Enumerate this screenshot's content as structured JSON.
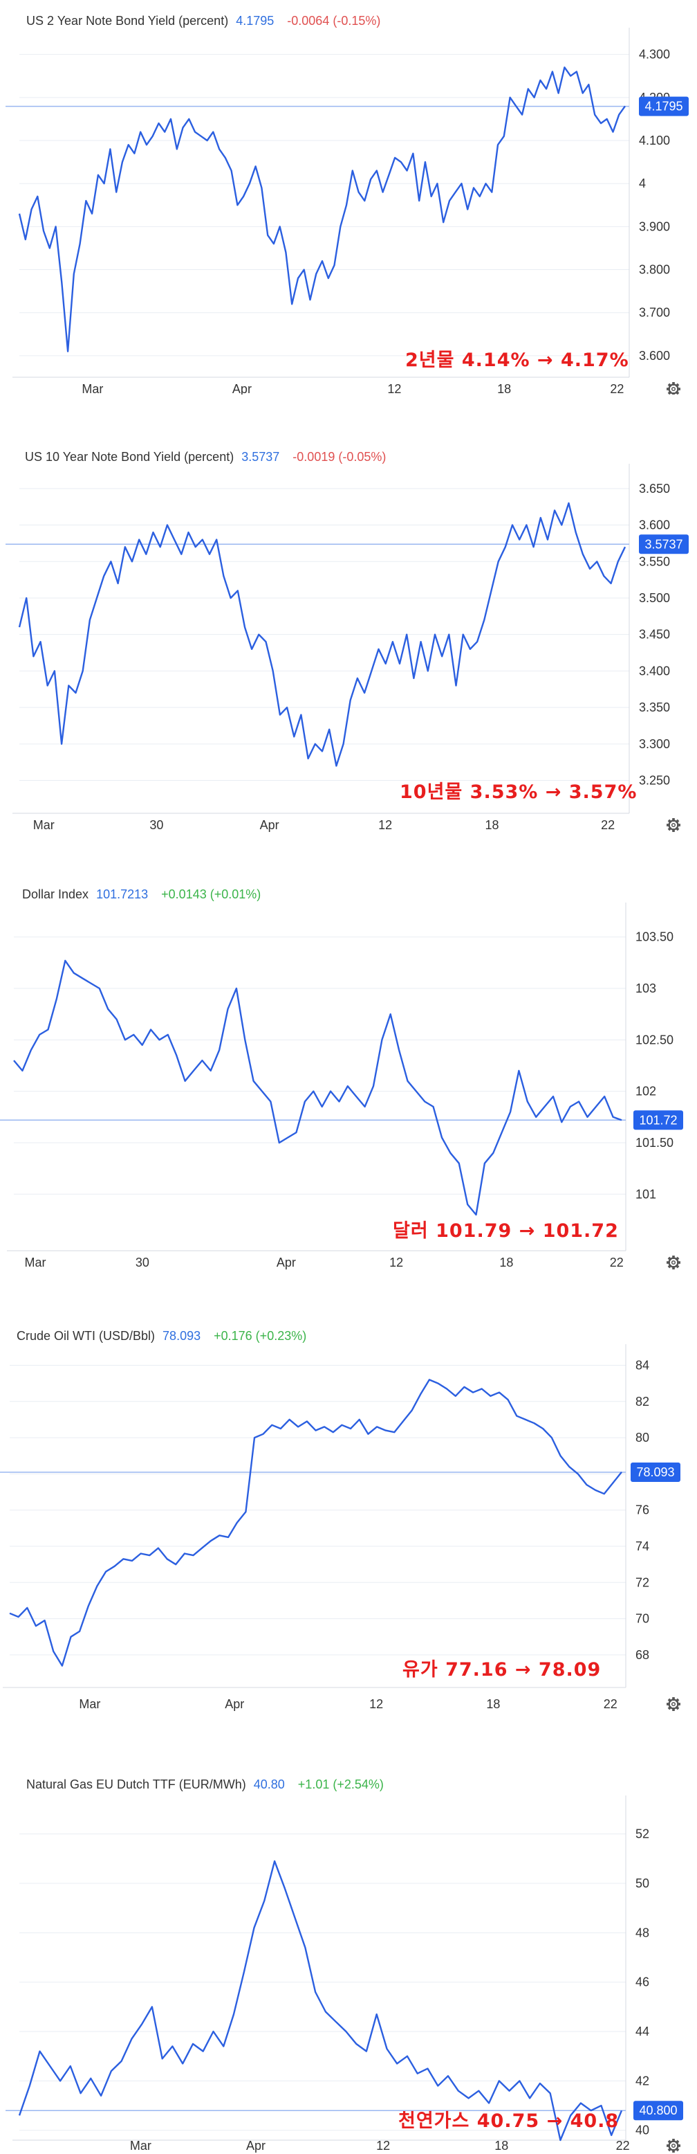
{
  "chart_data": [
    {
      "type": "line",
      "title": "US 2 Year Note Bond Yield (percent)",
      "last": "4.1795",
      "change": "-0.0064 (-0.15%)",
      "change_sign": "neg",
      "last_label": "4.1795",
      "last_value": 4.1795,
      "ylim": [
        3.55,
        4.33
      ],
      "y_ticks": [
        {
          "v": 4.3,
          "t": "4.300"
        },
        {
          "v": 4.2,
          "t": "4.200"
        },
        {
          "v": 4.1,
          "t": "4.100"
        },
        {
          "v": 4.0,
          "t": "4"
        },
        {
          "v": 3.9,
          "t": "3.900"
        },
        {
          "v": 3.8,
          "t": "3.800"
        },
        {
          "v": 3.7,
          "t": "3.700"
        },
        {
          "v": 3.6,
          "t": "3.600"
        }
      ],
      "x_ticks": [
        {
          "label": "Mar",
          "pos": 0.12
        },
        {
          "label": "Apr",
          "pos": 0.365
        },
        {
          "label": "12",
          "pos": 0.615
        },
        {
          "label": "18",
          "pos": 0.795
        },
        {
          "label": "22",
          "pos": 0.98
        }
      ],
      "annotation": "2년물 4.14% → 4.17%",
      "series": [
        {
          "values": [
            3.93,
            3.87,
            3.94,
            3.97,
            3.89,
            3.85,
            3.9,
            3.77,
            3.61,
            3.79,
            3.86,
            3.96,
            3.93,
            4.02,
            4.0,
            4.08,
            3.98,
            4.05,
            4.09,
            4.07,
            4.12,
            4.09,
            4.11,
            4.14,
            4.12,
            4.15,
            4.08,
            4.13,
            4.15,
            4.12,
            4.11,
            4.1,
            4.12,
            4.08,
            4.06,
            4.03,
            3.95,
            3.97,
            4.0,
            4.04,
            3.99,
            3.88,
            3.86,
            3.9,
            3.84,
            3.72,
            3.78,
            3.8,
            3.73,
            3.79,
            3.82,
            3.78,
            3.81,
            3.9,
            3.95,
            4.03,
            3.98,
            3.96,
            4.01,
            4.03,
            3.98,
            4.02,
            4.06,
            4.05,
            4.03,
            4.07,
            3.96,
            4.05,
            3.97,
            4.0,
            3.91,
            3.96,
            3.98,
            4.0,
            3.94,
            3.99,
            3.97,
            4.0,
            3.98,
            4.09,
            4.11,
            4.2,
            4.18,
            4.16,
            4.22,
            4.2,
            4.24,
            4.22,
            4.26,
            4.21,
            4.27,
            4.25,
            4.26,
            4.21,
            4.23,
            4.16,
            4.14,
            4.15,
            4.12,
            4.16,
            4.18
          ]
        }
      ]
    },
    {
      "type": "line",
      "title": "US 10 Year Note Bond Yield (percent)",
      "last": "3.5737",
      "change": "-0.0019 (-0.05%)",
      "change_sign": "neg",
      "last_label": "3.5737",
      "last_value": 3.5737,
      "ylim": [
        3.205,
        3.665
      ],
      "y_ticks": [
        {
          "v": 3.65,
          "t": "3.650"
        },
        {
          "v": 3.6,
          "t": "3.600"
        },
        {
          "v": 3.55,
          "t": "3.550"
        },
        {
          "v": 3.5,
          "t": "3.500"
        },
        {
          "v": 3.45,
          "t": "3.450"
        },
        {
          "v": 3.4,
          "t": "3.400"
        },
        {
          "v": 3.35,
          "t": "3.350"
        },
        {
          "v": 3.3,
          "t": "3.300"
        },
        {
          "v": 3.25,
          "t": "3.250"
        }
      ],
      "x_ticks": [
        {
          "label": "Mar",
          "pos": 0.04
        },
        {
          "label": "30",
          "pos": 0.225
        },
        {
          "label": "Apr",
          "pos": 0.41
        },
        {
          "label": "12",
          "pos": 0.6
        },
        {
          "label": "18",
          "pos": 0.775
        },
        {
          "label": "22",
          "pos": 0.965
        }
      ],
      "annotation": "10년물 3.53% → 3.57%",
      "series": [
        {
          "values": [
            3.46,
            3.5,
            3.42,
            3.44,
            3.38,
            3.4,
            3.3,
            3.38,
            3.37,
            3.4,
            3.47,
            3.5,
            3.53,
            3.55,
            3.52,
            3.57,
            3.55,
            3.58,
            3.56,
            3.59,
            3.57,
            3.6,
            3.58,
            3.56,
            3.59,
            3.57,
            3.58,
            3.56,
            3.58,
            3.53,
            3.5,
            3.51,
            3.46,
            3.43,
            3.45,
            3.44,
            3.4,
            3.34,
            3.35,
            3.31,
            3.34,
            3.28,
            3.3,
            3.29,
            3.32,
            3.27,
            3.3,
            3.36,
            3.39,
            3.37,
            3.4,
            3.43,
            3.41,
            3.44,
            3.41,
            3.45,
            3.39,
            3.44,
            3.4,
            3.45,
            3.42,
            3.45,
            3.38,
            3.45,
            3.43,
            3.44,
            3.47,
            3.51,
            3.55,
            3.57,
            3.6,
            3.58,
            3.6,
            3.57,
            3.61,
            3.58,
            3.62,
            3.6,
            3.63,
            3.59,
            3.56,
            3.54,
            3.55,
            3.53,
            3.52,
            3.55,
            3.57
          ]
        }
      ]
    },
    {
      "type": "line",
      "title": "Dollar Index",
      "last": "101.7213",
      "change": "+0.0143 (+0.01%)",
      "change_sign": "pos",
      "last_label": "101.72",
      "last_value": 101.72,
      "ylim": [
        100.45,
        103.7
      ],
      "y_ticks": [
        {
          "v": 103.5,
          "t": "103.50"
        },
        {
          "v": 103,
          "t": "103"
        },
        {
          "v": 102.5,
          "t": "102.50"
        },
        {
          "v": 102,
          "t": "102"
        },
        {
          "v": 101.5,
          "t": "101.50"
        },
        {
          "v": 101,
          "t": "101"
        }
      ],
      "x_ticks": [
        {
          "label": "Mar",
          "pos": 0.035
        },
        {
          "label": "30",
          "pos": 0.21
        },
        {
          "label": "Apr",
          "pos": 0.445
        },
        {
          "label": "12",
          "pos": 0.625
        },
        {
          "label": "18",
          "pos": 0.805
        },
        {
          "label": "22",
          "pos": 0.985
        }
      ],
      "annotation": "달러 101.79 → 101.72",
      "series": [
        {
          "values": [
            102.3,
            102.2,
            102.4,
            102.55,
            102.6,
            102.9,
            103.27,
            103.15,
            103.1,
            103.05,
            103.0,
            102.8,
            102.7,
            102.5,
            102.55,
            102.45,
            102.6,
            102.5,
            102.55,
            102.35,
            102.1,
            102.2,
            102.3,
            102.2,
            102.4,
            102.8,
            103.0,
            102.5,
            102.1,
            102.0,
            101.9,
            101.5,
            101.55,
            101.6,
            101.9,
            102.0,
            101.85,
            102.0,
            101.9,
            102.05,
            101.95,
            101.85,
            102.05,
            102.5,
            102.75,
            102.4,
            102.1,
            102.0,
            101.9,
            101.85,
            101.55,
            101.4,
            101.3,
            100.9,
            100.8,
            101.3,
            101.4,
            101.6,
            101.8,
            102.2,
            101.9,
            101.75,
            101.85,
            101.95,
            101.7,
            101.85,
            101.9,
            101.75,
            101.85,
            101.95,
            101.75,
            101.72
          ]
        }
      ]
    },
    {
      "type": "line",
      "title": "Crude Oil WTI (USD/Bbl)",
      "last": "78.093",
      "change": "+0.176 (+0.23%)",
      "change_sign": "pos",
      "last_label": "78.093",
      "last_value": 78.093,
      "ylim": [
        66.2,
        84.4
      ],
      "y_ticks": [
        {
          "v": 84,
          "t": "84"
        },
        {
          "v": 82,
          "t": "82"
        },
        {
          "v": 80,
          "t": "80"
        },
        {
          "v": 78,
          "t": "78"
        },
        {
          "v": 76,
          "t": "76"
        },
        {
          "v": 74,
          "t": "74"
        },
        {
          "v": 72,
          "t": "72"
        },
        {
          "v": 70,
          "t": "70"
        },
        {
          "v": 68,
          "t": "68"
        }
      ],
      "x_ticks": [
        {
          "label": "Mar",
          "pos": 0.13
        },
        {
          "label": "Apr",
          "pos": 0.365
        },
        {
          "label": "12",
          "pos": 0.595
        },
        {
          "label": "18",
          "pos": 0.785
        },
        {
          "label": "22",
          "pos": 0.975
        }
      ],
      "annotation": "유가 77.16 → 78.09",
      "series": [
        {
          "values": [
            70.3,
            70.1,
            70.6,
            69.6,
            69.9,
            68.2,
            67.4,
            69.0,
            69.3,
            70.7,
            71.8,
            72.6,
            72.9,
            73.3,
            73.2,
            73.6,
            73.5,
            73.9,
            73.3,
            73.0,
            73.6,
            73.5,
            73.9,
            74.3,
            74.6,
            74.5,
            75.3,
            75.9,
            80.0,
            80.2,
            80.7,
            80.5,
            81.0,
            80.6,
            80.9,
            80.4,
            80.6,
            80.3,
            80.7,
            80.5,
            81.0,
            80.2,
            80.6,
            80.4,
            80.3,
            80.9,
            81.5,
            82.4,
            83.2,
            83.0,
            82.7,
            82.3,
            82.8,
            82.5,
            82.7,
            82.3,
            82.5,
            82.1,
            81.2,
            81.0,
            80.8,
            80.5,
            80.0,
            79.0,
            78.4,
            78.0,
            77.4,
            77.1,
            76.9,
            77.5,
            78.1
          ]
        }
      ]
    },
    {
      "type": "line",
      "title": "Natural Gas EU Dutch TTF (EUR/MWh)",
      "last": "40.80",
      "change": "+1.01 (+2.54%)",
      "change_sign": "pos",
      "last_label": "40.800",
      "last_value": 40.8,
      "ylim": [
        39.6,
        53.0
      ],
      "y_ticks": [
        {
          "v": 52,
          "t": "52"
        },
        {
          "v": 50,
          "t": "50"
        },
        {
          "v": 48,
          "t": "48"
        },
        {
          "v": 46,
          "t": "46"
        },
        {
          "v": 44,
          "t": "44"
        },
        {
          "v": 42,
          "t": "42"
        },
        {
          "v": 40,
          "t": "40"
        }
      ],
      "x_ticks": [
        {
          "label": "Mar",
          "pos": 0.2
        },
        {
          "label": "Apr",
          "pos": 0.39
        },
        {
          "label": "12",
          "pos": 0.6
        },
        {
          "label": "18",
          "pos": 0.795
        },
        {
          "label": "22",
          "pos": 0.995
        }
      ],
      "annotation": "천연가스 40.75 → 40.8",
      "series": [
        {
          "values": [
            40.6,
            41.8,
            43.2,
            42.6,
            42.0,
            42.6,
            41.5,
            42.1,
            41.4,
            42.4,
            42.8,
            43.7,
            44.3,
            45.0,
            42.9,
            43.4,
            42.7,
            43.5,
            43.2,
            44.0,
            43.4,
            44.7,
            46.4,
            48.2,
            49.3,
            50.9,
            49.8,
            48.6,
            47.4,
            45.6,
            44.8,
            44.4,
            44.0,
            43.5,
            43.2,
            44.7,
            43.3,
            42.7,
            43.0,
            42.3,
            42.5,
            41.8,
            42.2,
            41.6,
            41.3,
            41.6,
            41.1,
            42.0,
            41.6,
            42.0,
            41.3,
            41.9,
            41.5,
            39.6,
            40.6,
            41.1,
            40.8,
            41.0,
            39.8,
            40.8
          ]
        }
      ]
    }
  ],
  "colors": {
    "line": "#2b5fe0",
    "ref_line": "#9ab7f0",
    "label_bg": "#2563eb",
    "grid": "#e9edf3",
    "axis": "#d4d9e2",
    "annotation": "#e81e1e",
    "positive": "#3bb44a",
    "negative": "#e05050"
  },
  "icons": {
    "settings": "gear-icon"
  }
}
